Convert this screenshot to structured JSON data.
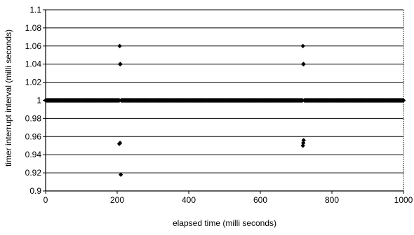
{
  "chart_data": {
    "type": "scatter",
    "title": "",
    "xlabel": "elapsed time (milli seconds)",
    "ylabel": "timer interrupt interval (milli seconds)",
    "xlim": [
      0,
      1000
    ],
    "ylim": [
      0.9,
      1.1
    ],
    "xticks": [
      0,
      200,
      400,
      600,
      800,
      1000
    ],
    "yticks": [
      0.9,
      0.92,
      0.94,
      0.96,
      0.98,
      1,
      1.02,
      1.04,
      1.06,
      1.08,
      1.1
    ],
    "xtick_labels": [
      "0",
      "200",
      "400",
      "600",
      "800",
      "1000"
    ],
    "ytick_labels": [
      "0.9",
      "0.92",
      "0.94",
      "0.96",
      "0.98",
      "1",
      "1.02",
      "1.04",
      "1.06",
      "1.08",
      "1.1"
    ],
    "grid": "horizontal",
    "legend": "none",
    "marker_color": "#000000",
    "series": [
      {
        "baseline": {
          "y": 1.0,
          "x_ranges": [
            [
              0,
              206
            ],
            [
              211,
              718
            ],
            [
              723,
              1000
            ]
          ],
          "x_step": 1
        },
        "points": [
          {
            "x": 207,
            "y": 1.06
          },
          {
            "x": 208,
            "y": 1.04
          },
          {
            "x": 209,
            "y": 1.04
          },
          {
            "x": 206,
            "y": 0.952
          },
          {
            "x": 208,
            "y": 0.953
          },
          {
            "x": 210,
            "y": 0.918
          },
          {
            "x": 719,
            "y": 1.06
          },
          {
            "x": 720,
            "y": 1.04
          },
          {
            "x": 721,
            "y": 1.04
          },
          {
            "x": 721,
            "y": 0.956
          },
          {
            "x": 719,
            "y": 0.95
          },
          {
            "x": 720,
            "y": 0.953
          }
        ]
      }
    ]
  }
}
